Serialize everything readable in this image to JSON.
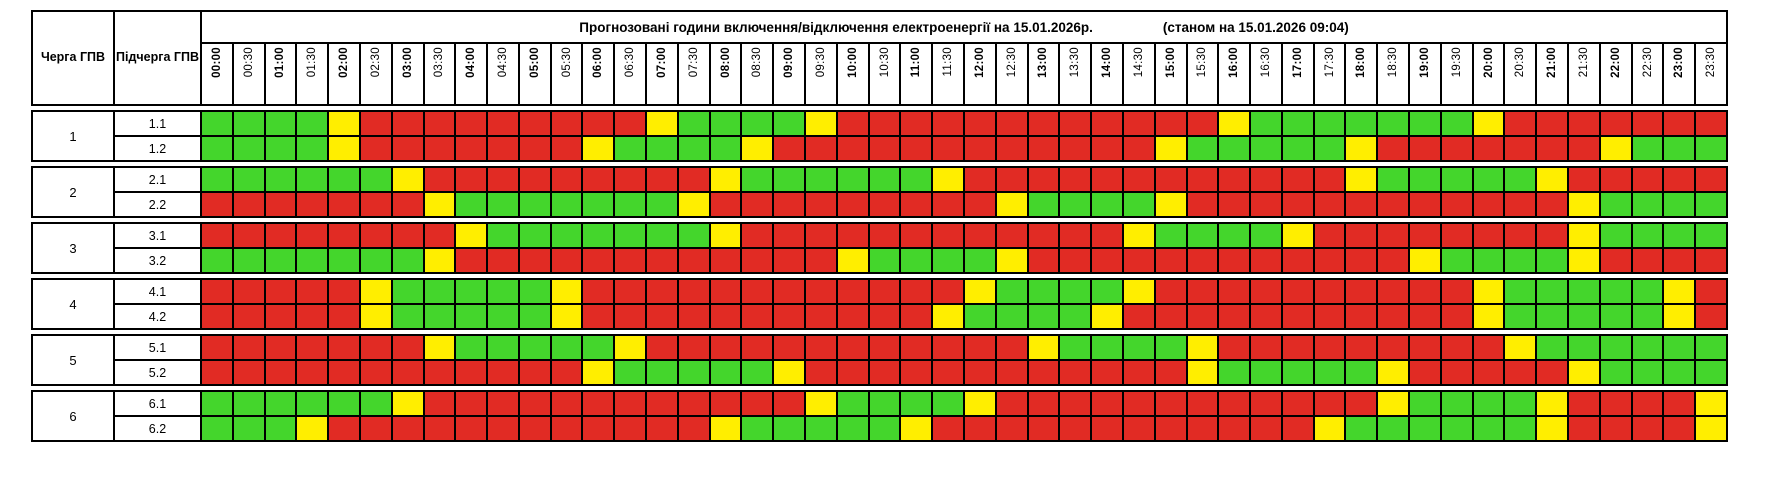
{
  "title": "Прогнозовані години включення/відключення електроенергії на 15.01.2026р.",
  "title_note": "(станом на 15.01.2026 09:04)",
  "headers": {
    "queue": "Черга ГПВ",
    "subqueue": "Підчерга ГПВ"
  },
  "colors": {
    "on": "#44d62c",
    "off": "#e12b24",
    "maybe": "#ffee00"
  },
  "legend_meaning": {
    "G": "power-on",
    "R": "power-off",
    "Y": "possible-switching"
  },
  "time_columns": [
    "00:00",
    "00:30",
    "01:00",
    "01:30",
    "02:00",
    "02:30",
    "03:00",
    "03:30",
    "04:00",
    "04:30",
    "05:00",
    "05:30",
    "06:00",
    "06:30",
    "07:00",
    "07:30",
    "08:00",
    "08:30",
    "09:00",
    "09:30",
    "10:00",
    "10:30",
    "11:00",
    "11:30",
    "12:00",
    "12:30",
    "13:00",
    "13:30",
    "14:00",
    "14:30",
    "15:00",
    "15:30",
    "16:00",
    "16:30",
    "17:00",
    "17:30",
    "18:00",
    "18:30",
    "19:00",
    "19:30",
    "20:00",
    "20:30",
    "21:00",
    "21:30",
    "22:00",
    "22:30",
    "23:00",
    "23:30"
  ],
  "chart_data": {
    "type": "heatmap",
    "x": "time_columns",
    "note": "G=green on, Y=yellow possible, R=red off; one char per 30-min slot"
  },
  "queues": [
    {
      "queue": "1",
      "rows": [
        {
          "label": "1.1",
          "cells": "GGGGYRRRRRRRRRYGGGGYRRRRRRRRRRRRYGGGGGGGYRRRRRRR"
        },
        {
          "label": "1.2",
          "cells": "GGGGYRRRRRRRYGGGGYRRRRRRRRRRRRYGGGGGYRRRRRRRYGGG"
        }
      ]
    },
    {
      "queue": "2",
      "rows": [
        {
          "label": "2.1",
          "cells": "GGGGGGYRRRRRRRRRYGGGGGGYRRRRRRRRRRRRYGGGGGYRRRRR"
        },
        {
          "label": "2.2",
          "cells": "RRRRRRRYGGGGGGGYRRRRRRRRRYGGGGYRRRRRRRRRRRRYGGGG"
        }
      ]
    },
    {
      "queue": "3",
      "rows": [
        {
          "label": "3.1",
          "cells": "RRRRRRRRYGGGGGGGYRRRRRRRRRRRRYGGGGYRRRRRRRRYGGGG"
        },
        {
          "label": "3.2",
          "cells": "GGGGGGGYRRRRRRRRRRRRYGGGGYRRRRRRRRRRRRYGGGGYRRRR"
        }
      ]
    },
    {
      "queue": "4",
      "rows": [
        {
          "label": "4.1",
          "cells": "RRRRRYGGGGGYRRRRRRRRRRRRYGGGGYRRRRRRRRRRYGGGGGYR"
        },
        {
          "label": "4.2",
          "cells": "RRRRRYGGGGGYRRRRRRRRRRRYGGGGYRRRRRRRRRRRYGGGGGYR"
        }
      ]
    },
    {
      "queue": "5",
      "rows": [
        {
          "label": "5.1",
          "cells": "RRRRRRRYGGGGGYRRRRRRRRRRRRYGGGGYRRRRRRRRRYGGGGGG"
        },
        {
          "label": "5.2",
          "cells": "RRRRRRRRRRRRYGGGGGYRRRRRRRRRRRRYGGGGGYRRRRRYGGGG"
        }
      ]
    },
    {
      "queue": "6",
      "rows": [
        {
          "label": "6.1",
          "cells": "GGGGGGYRRRRRRRRRRRRYGGGGYRRRRRRRRRRRRYGGGGYRRRRY"
        },
        {
          "label": "6.2",
          "cells": "GGGYRRRRRRRRRRRRYGGGGGYRRRRRRRRRRRRYGGGGGGYRRRRY"
        }
      ]
    }
  ]
}
